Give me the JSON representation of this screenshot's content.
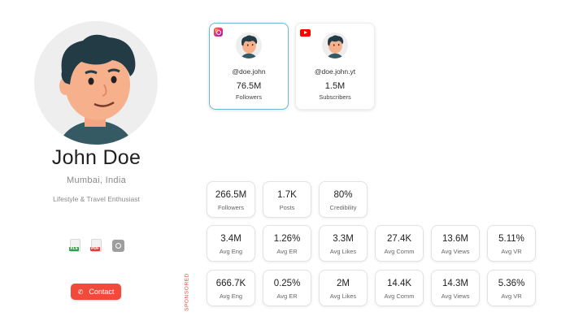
{
  "profile": {
    "name": "John Doe",
    "location": "Mumbai, India",
    "bio": "Lifestyle & Travel Enthusiast"
  },
  "export": {
    "xls_label": "XLS",
    "pdf_label": "PDF"
  },
  "contact_label": "Contact",
  "social": [
    {
      "platform": "instagram",
      "icon": "instagram-icon",
      "handle": "@doe.john",
      "count": "76.5M",
      "count_label": "Followers"
    },
    {
      "platform": "youtube",
      "icon": "youtube-icon",
      "handle": "@doe.john.yt",
      "count": "1.5M",
      "count_label": "Subscribers"
    }
  ],
  "sponsored_label": "SPONSORED",
  "summary": [
    {
      "value": "266.5M",
      "label": "Followers"
    },
    {
      "value": "1.7K",
      "label": "Posts"
    },
    {
      "value": "80%",
      "label": "Credibility"
    }
  ],
  "organic": [
    {
      "value": "3.4M",
      "label": "Avg Eng"
    },
    {
      "value": "1.26%",
      "label": "Avg ER"
    },
    {
      "value": "3.3M",
      "label": "Avg Likes"
    },
    {
      "value": "27.4K",
      "label": "Avg Comm"
    },
    {
      "value": "13.6M",
      "label": "Avg Views"
    },
    {
      "value": "5.11%",
      "label": "Avg VR"
    }
  ],
  "sponsored": [
    {
      "value": "666.7K",
      "label": "Avg Eng"
    },
    {
      "value": "0.25%",
      "label": "Avg ER"
    },
    {
      "value": "2M",
      "label": "Avg Likes"
    },
    {
      "value": "14.4K",
      "label": "Avg Comm"
    },
    {
      "value": "14.3M",
      "label": "Avg Views"
    },
    {
      "value": "5.36%",
      "label": "Avg VR"
    }
  ],
  "colors": {
    "accent": "#ef4a3a",
    "active_card_border": "#6fb8d8",
    "avatar_bg": "#eeeeee"
  }
}
